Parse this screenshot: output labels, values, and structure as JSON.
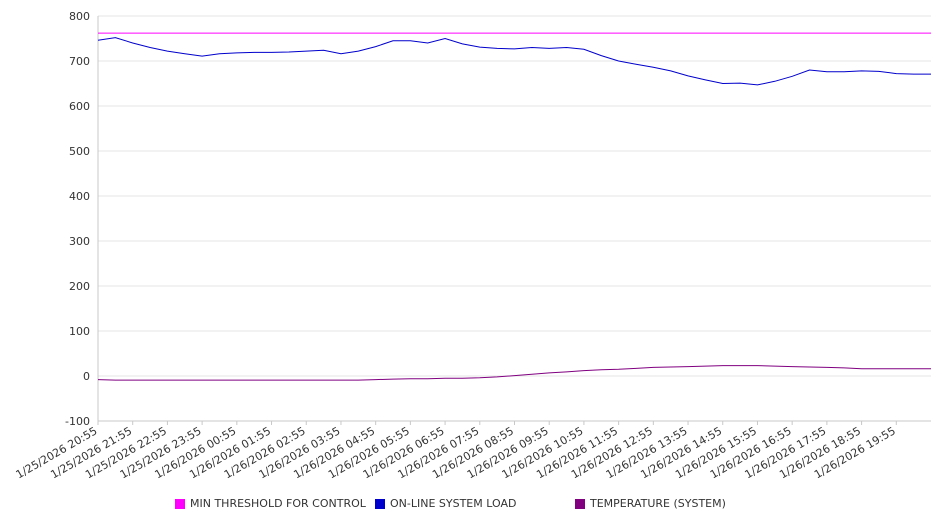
{
  "chart_data": {
    "type": "line",
    "title": "",
    "xlabel": "",
    "ylabel": "",
    "ylim": [
      -100,
      800
    ],
    "yticks": [
      -100,
      0,
      100,
      200,
      300,
      400,
      500,
      600,
      700,
      800
    ],
    "grid": true,
    "legend_position": "bottom",
    "x_tick_labels": [
      "1/25/2026 20:55",
      "1/25/2026 21:55",
      "1/25/2026 22:55",
      "1/25/2026 23:55",
      "1/26/2026 00:55",
      "1/26/2026 01:55",
      "1/26/2026 02:55",
      "1/26/2026 03:55",
      "1/26/2026 04:55",
      "1/26/2026 05:55",
      "1/26/2026 06:55",
      "1/26/2026 07:55",
      "1/26/2026 08:55",
      "1/26/2026 09:55",
      "1/26/2026 10:55",
      "1/26/2026 11:55",
      "1/26/2026 12:55",
      "1/26/2026 13:55",
      "1/26/2026 14:55",
      "1/26/2026 15:55",
      "1/26/2026 16:55",
      "1/26/2026 17:55",
      "1/26/2026 18:55",
      "1/26/2026 19:55"
    ],
    "x": [
      "1/25/2026 20:55",
      "1/25/2026 21:25",
      "1/25/2026 21:55",
      "1/25/2026 22:25",
      "1/25/2026 22:55",
      "1/25/2026 23:25",
      "1/25/2026 23:55",
      "1/26/2026 00:25",
      "1/26/2026 00:55",
      "1/26/2026 01:25",
      "1/26/2026 01:55",
      "1/26/2026 02:25",
      "1/26/2026 02:55",
      "1/26/2026 03:25",
      "1/26/2026 03:55",
      "1/26/2026 04:25",
      "1/26/2026 04:55",
      "1/26/2026 05:25",
      "1/26/2026 05:55",
      "1/26/2026 06:25",
      "1/26/2026 06:55",
      "1/26/2026 07:25",
      "1/26/2026 07:55",
      "1/26/2026 08:25",
      "1/26/2026 08:55",
      "1/26/2026 09:25",
      "1/26/2026 09:55",
      "1/26/2026 10:25",
      "1/26/2026 10:55",
      "1/26/2026 11:25",
      "1/26/2026 11:55",
      "1/26/2026 12:25",
      "1/26/2026 12:55",
      "1/26/2026 13:25",
      "1/26/2026 13:55",
      "1/26/2026 14:25",
      "1/26/2026 14:55",
      "1/26/2026 15:25",
      "1/26/2026 15:55",
      "1/26/2026 16:25",
      "1/26/2026 16:55",
      "1/26/2026 17:25",
      "1/26/2026 17:55",
      "1/26/2026 18:25",
      "1/26/2026 18:55",
      "1/26/2026 19:25",
      "1/26/2026 19:55",
      "1/26/2026 20:25",
      "1/26/2026 20:55"
    ],
    "series": [
      {
        "name": "MIN THRESHOLD FOR CONTROL",
        "color": "#ff00ff",
        "values": [
          762,
          762,
          762,
          762,
          762,
          762,
          762,
          762,
          762,
          762,
          762,
          762,
          762,
          762,
          762,
          762,
          762,
          762,
          762,
          762,
          762,
          762,
          762,
          762,
          762,
          762,
          762,
          762,
          762,
          762,
          762,
          762,
          762,
          762,
          762,
          762,
          762,
          762,
          762,
          762,
          762,
          762,
          762,
          762,
          762,
          762,
          762,
          762,
          762
        ]
      },
      {
        "name": "ON-LINE SYSTEM LOAD",
        "color": "#0000cc",
        "values": [
          746,
          752,
          740,
          730,
          722,
          716,
          711,
          716,
          718,
          719,
          719,
          720,
          722,
          724,
          716,
          722,
          732,
          745,
          745,
          740,
          750,
          738,
          731,
          728,
          727,
          730,
          728,
          730,
          726,
          712,
          700,
          693,
          686,
          678,
          667,
          658,
          650,
          651,
          647,
          655,
          666,
          680,
          676,
          676,
          678,
          677,
          672,
          671,
          671
        ]
      },
      {
        "name": "TEMPERATURE (SYSTEM)",
        "color": "#800080",
        "values": [
          -8,
          -9,
          -9,
          -9,
          -9,
          -9,
          -9,
          -9,
          -9,
          -9,
          -9,
          -9,
          -9,
          -9,
          -9,
          -9,
          -8,
          -7,
          -6,
          -6,
          -5,
          -5,
          -4,
          -2,
          1,
          4,
          7,
          9,
          12,
          14,
          15,
          17,
          19,
          20,
          21,
          22,
          23,
          23,
          23,
          22,
          21,
          20,
          19,
          18,
          16,
          16,
          16,
          16,
          16
        ]
      }
    ]
  }
}
